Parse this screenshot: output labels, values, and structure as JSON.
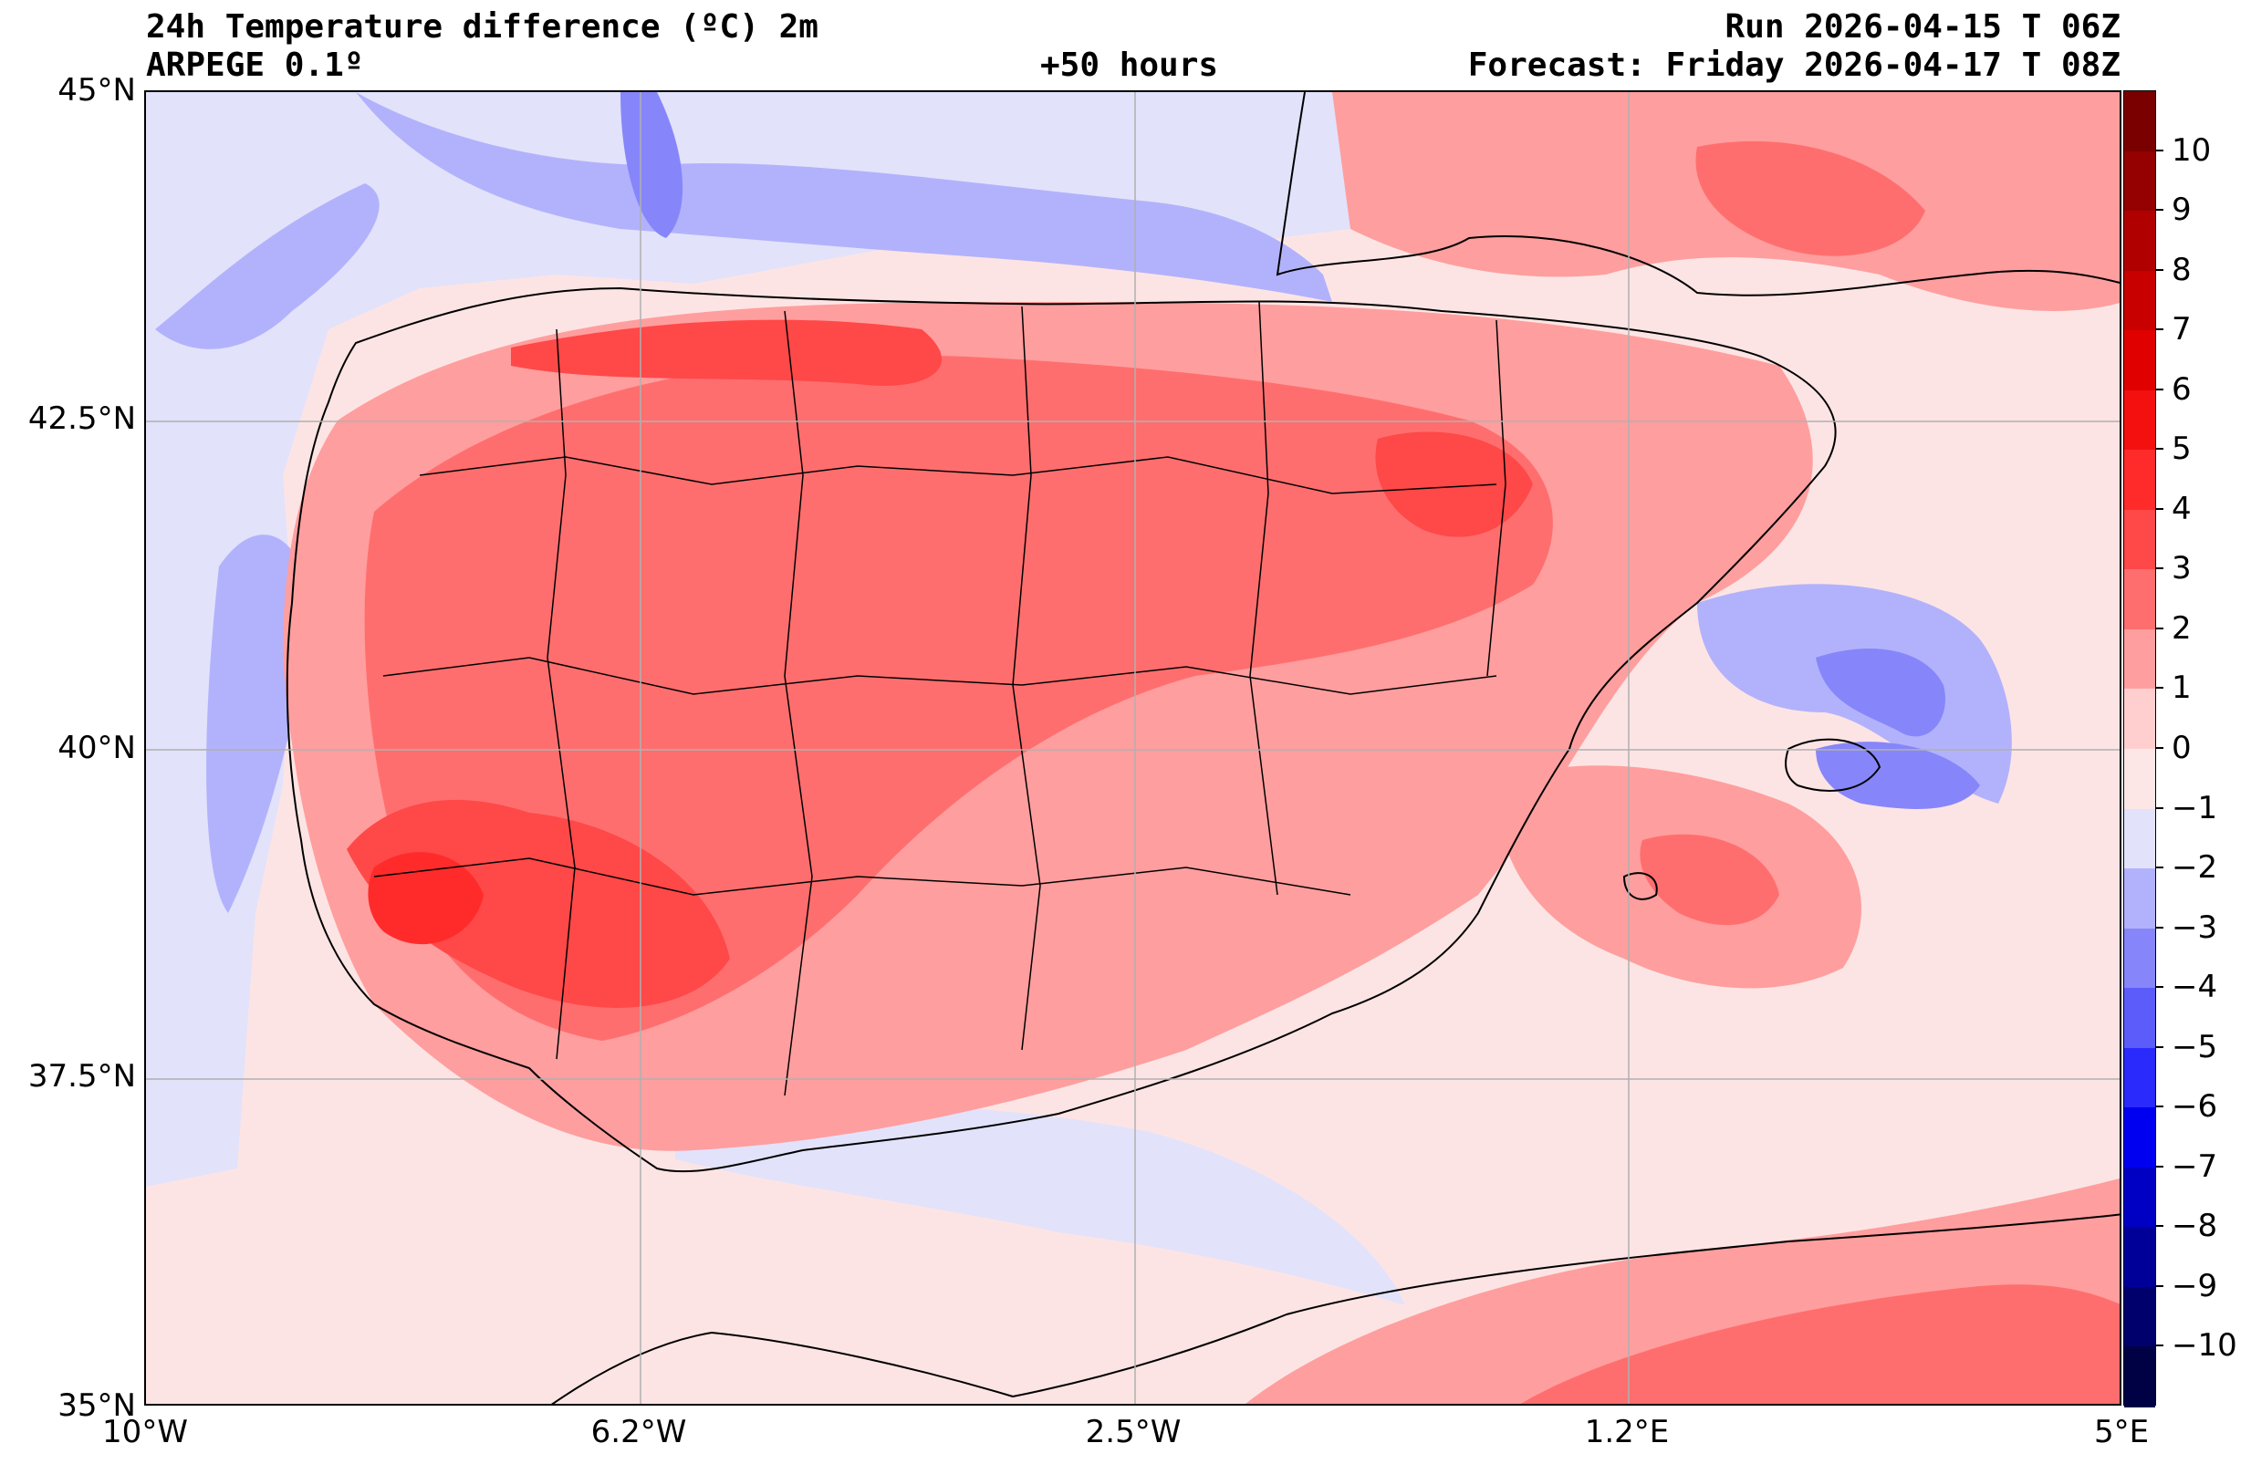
{
  "header": {
    "title": "24h Temperature difference (ºC) 2m",
    "model": "ARPEGE 0.1º",
    "lead_time": "+50 hours",
    "run": "Run 2026-04-15 T 06Z",
    "forecast": "Forecast: Friday 2026-04-17 T 08Z"
  },
  "map": {
    "lat_labels": [
      "45°N",
      "42.5°N",
      "40°N",
      "37.5°N",
      "35°N"
    ],
    "lat_values": [
      45,
      42.5,
      40,
      37.5,
      35
    ],
    "lon_labels": [
      "10°W",
      "6.2°W",
      "2.5°W",
      "1.2°E",
      "5°E"
    ],
    "lon_values": [
      -10,
      -6.25,
      -2.5,
      1.25,
      5
    ],
    "lat_range": [
      35,
      45
    ],
    "lon_range": [
      -10,
      5
    ]
  },
  "colorbar": {
    "labels": [
      "10",
      "9",
      "8",
      "7",
      "6",
      "5",
      "4",
      "3",
      "2",
      "1",
      "0",
      "−1",
      "−2",
      "−3",
      "−4",
      "−5",
      "−6",
      "−7",
      "−8",
      "−9",
      "−10"
    ],
    "colors_top_to_bottom": [
      "#7a0000",
      "#950000",
      "#b00000",
      "#c80000",
      "#e00000",
      "#f51010",
      "#ff2b2b",
      "#ff4848",
      "#ff6e6e",
      "#ff9e9e",
      "#ffcfcf",
      "#fde6e6",
      "#e2e2fb",
      "#b2b2fc",
      "#8686fa",
      "#5c5cfa",
      "#2a2afc",
      "#0000f0",
      "#0000c4",
      "#000098",
      "#00006c",
      "#000044"
    ]
  }
}
